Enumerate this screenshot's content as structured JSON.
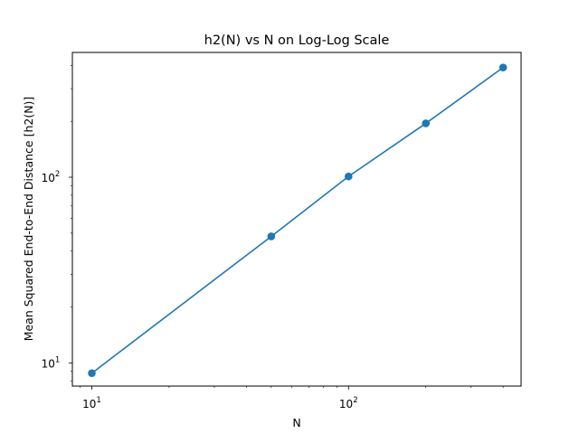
{
  "chart_data": {
    "type": "line",
    "title": "h2(N) vs N on Log-Log Scale",
    "xlabel": "N",
    "ylabel": "Mean Squared End-to-End Distance [h2(N)]",
    "xscale": "log",
    "yscale": "log",
    "xlim": [
      8.4,
      470
    ],
    "ylim": [
      7.5,
      470
    ],
    "grid": false,
    "x_major_ticks": [
      {
        "value": 10,
        "base": "10",
        "exp": "1"
      },
      {
        "value": 100,
        "base": "10",
        "exp": "2"
      }
    ],
    "y_major_ticks": [
      {
        "value": 10,
        "base": "10",
        "exp": "1"
      },
      {
        "value": 100,
        "base": "10",
        "exp": "2"
      }
    ],
    "series": [
      {
        "color": "#1f77b4",
        "marker": "circle",
        "x": [
          10,
          50,
          100,
          200,
          400
        ],
        "y": [
          8.8,
          48,
          101,
          195,
          390
        ]
      }
    ]
  }
}
